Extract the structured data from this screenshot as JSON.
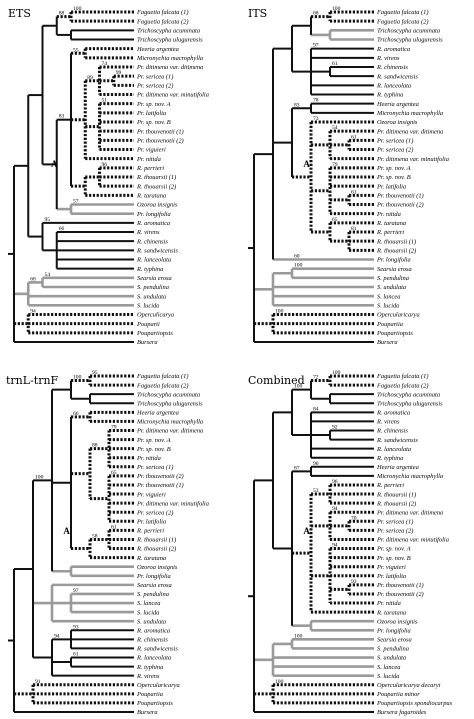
{
  "colors": {
    "solid": "#111111",
    "dotted": "#111111",
    "gray": "#9a9a9a",
    "background": "#ffffff"
  },
  "panels": [
    {
      "title": "ETS",
      "tips": [
        "Faguetia falcata (1)",
        "Faguetia falcata (2)",
        "Trichoscypha acuminata",
        "Trichoscypha ulugurensis",
        "Heeria argentea",
        "Micronychia macrophylla",
        "Pr. ditimena var. ditimena",
        "Pr. sericea (1)",
        "Pr. sericea (2)",
        "Pr. ditimena var. minutifolia",
        "Pr. sp. nov. A",
        "Pr. latifolia",
        "Pr. sp. nov. B",
        "Pr. thouvenotii (1)",
        "Pr. thouvenotii (2)",
        "Pr. viguieri",
        "Pr. nitida",
        "R. perrieri",
        "R. thouarsii (1)",
        "R. thouarsii (2)",
        "R. taratana",
        "Ozoroa insignis",
        "Pr. longifolia",
        "R. aromatica",
        "R. virens",
        "R. chinensis",
        "R. sandwicensis",
        "R. lanceolata",
        "R. typhina",
        "Searsia erosa",
        "S. pendulina",
        "S. undulata",
        "S. lucida",
        "Operculicarya",
        "Pouparti",
        "Poupartiopsis",
        "Bursera"
      ],
      "supports": [
        "100",
        "88",
        "74",
        "99",
        "87",
        "51",
        "89",
        "51",
        "96",
        "83",
        "55",
        "57",
        "87",
        "66",
        "95",
        "54",
        "68",
        "94"
      ],
      "node": "A"
    },
    {
      "title": "ITS",
      "tips": [
        "Faguetia falcata (1)",
        "Faguetia falcata (2)",
        "Trichoscypha acuminata",
        "Trichoscypha ulugurensis",
        "R. aromatica",
        "R. virens",
        "R. chinensis",
        "R. sandwicensis",
        "R. lanceolata",
        "R. typhina",
        "Heeria argentea",
        "Micronychia macrophylla",
        "Ozoroa insignis",
        "Pr. ditimena var. ditimena",
        "Pr. sericea (1)",
        "Pr. sericea (2)",
        "Pr. ditimena var. minutifolia",
        "Pr. sp. nov. A",
        "Pr. sp. nov. B",
        "Pr. latifolia",
        "Pr. thouvenotii (1)",
        "Pr. thouvenotii (2)",
        "Pr. nitida",
        "R. taratana",
        "R. perrieri",
        "R. thouarsii (1)",
        "R. thouarsii (2)",
        "Pr. longifolia",
        "Searsia erosa",
        "S. pendulina",
        "S. undulata",
        "S. lancea",
        "S. lucida",
        "Opercularicarya",
        "Poupartia",
        "Poupartiopsis",
        "Bursera"
      ],
      "supports": [
        "100",
        "68",
        "97",
        "61",
        "64",
        "78",
        "54",
        "61",
        "58",
        "61",
        "79",
        "65",
        "81",
        "73",
        "83",
        "60",
        "100",
        "100"
      ],
      "node": "A"
    },
    {
      "title": "trnL-trnF",
      "tips": [
        "Faguetia falcata (1)",
        "Faguetia falcata (2)",
        "Trichoscypha acuminata",
        "Trichoscypha ulugurensis",
        "Heeria argentea",
        "Micronychia macrophylla",
        "Pr. ditimena var. ditimena",
        "Pr. sp. nov. A",
        "Pr. sp. nov. B",
        "Pr. nitida",
        "Pr. sericea (1)",
        "Pr. thouvenotii (2)",
        "Pr. thouvenotii (1)",
        "Pr. viguieri",
        "Pr. ditimena var. minutifolia",
        "Pr. sericea (2)",
        "Pr. latifolia",
        "R. perrieri",
        "R. thouarsii (1)",
        "R. thouarsii (2)",
        "R. taratana",
        "Ozoroa insignis",
        "Pr. longifolia",
        "Searsia erosa",
        "S. pendulina",
        "S. lancea",
        "S. lucida",
        "S. undulata",
        "R. aromatica",
        "R. chinensis",
        "R. sandwicensis",
        "R. lanceolata",
        "R. typhina",
        "R. virens",
        "Opercularicarya",
        "Poupartia",
        "Poupartiopsis",
        "Bursera"
      ],
      "supports": [
        "95",
        "100",
        "84",
        "79",
        "65",
        "88",
        "61",
        "58",
        "83",
        "66",
        "97",
        "93",
        "61",
        "94",
        "100",
        "91",
        "100"
      ],
      "node": "A"
    },
    {
      "title": "Combined",
      "tips": [
        "Faguetia falcata (1)",
        "Faguetia falcata (2)",
        "Trichoscypha acuminata",
        "Trichoscypha ulugurensis",
        "R. aromatica",
        "R. virens",
        "R. chinensis",
        "R. sandwicensis",
        "R. lanceolata",
        "R. typhina",
        "Heeria argentea",
        "Micronychia macrophylla",
        "R. perrieri",
        "R. thouarsii (1)",
        "R. thouarsii (2)",
        "Pr. ditimena var. ditimena",
        "Pr. sericea (1)",
        "Pr. sericea (2)",
        "Pr. ditimena var. minutifolia",
        "Pr. sp. nov. A",
        "Pr. sp. nov. B",
        "Pr. viguieri",
        "Pr. latifolia",
        "Pr. thouvenotii (1)",
        "Pr. thouvenotii (2)",
        "Pr. nitida",
        "R. taratana",
        "Ozoroa insignis",
        "Pr. longifolia",
        "Searsia erosa",
        "S. pendulina",
        "S. undulata",
        "S. lancea",
        "S. lucida",
        "Opercularicarya decaryi",
        "Poupartia minor",
        "Poupartiopsis spondiocarpus",
        "Bursera fagaroides"
      ],
      "supports": [
        "100",
        "65",
        "72",
        "100",
        "84",
        "92",
        "99",
        "91",
        "93",
        "92",
        "90",
        "100",
        "96",
        "53",
        "94",
        "94",
        "70",
        "93",
        "87",
        "100",
        "100",
        "100",
        "100",
        "100"
      ],
      "node": "A"
    }
  ]
}
